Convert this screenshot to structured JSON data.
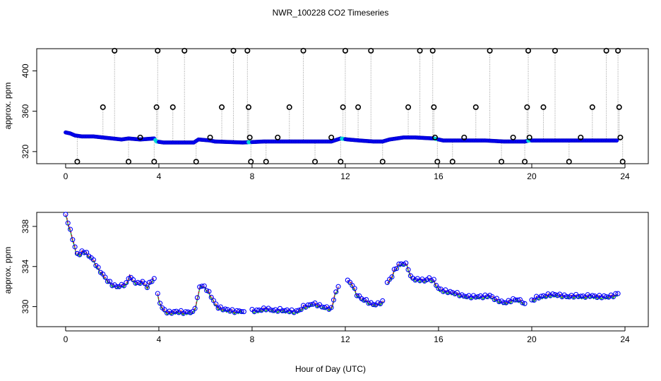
{
  "title": "NWR_100228  CO2 Timeseries",
  "xlabel": "Hour of Day (UTC)",
  "colors": {
    "raw": "#000000",
    "mean": "#0000ff",
    "flag": "#00d8d8",
    "median": "#ff0000",
    "smooth": "#00b000",
    "connector": "#9a9a9a"
  },
  "chart_data": [
    {
      "type": "scatter",
      "panel": "top",
      "title": "NWR_100228  CO2 Timeseries",
      "xlabel": "",
      "ylabel": "approx. ppm",
      "xlim": [
        0,
        24
      ],
      "ylim": [
        308,
        422
      ],
      "xticks": [
        0,
        4,
        8,
        12,
        16,
        20,
        24
      ],
      "yticks": [
        320,
        360,
        400
      ],
      "baseline": [
        [
          0,
          339
        ],
        [
          0.2,
          338
        ],
        [
          0.4,
          336
        ],
        [
          0.7,
          335
        ],
        [
          1.2,
          335
        ],
        [
          1.6,
          334
        ],
        [
          2.0,
          333
        ],
        [
          2.4,
          332
        ],
        [
          2.7,
          333
        ],
        [
          3.2,
          332
        ],
        [
          3.8,
          333
        ],
        [
          3.9,
          330
        ],
        [
          4.2,
          329
        ],
        [
          5.5,
          329
        ],
        [
          5.7,
          332
        ],
        [
          6.2,
          331
        ],
        [
          6.4,
          330
        ],
        [
          7.6,
          329
        ],
        [
          8.5,
          330
        ],
        [
          9.6,
          330
        ],
        [
          10.6,
          330
        ],
        [
          11.4,
          330
        ],
        [
          11.8,
          333
        ],
        [
          12.1,
          332
        ],
        [
          12.6,
          331
        ],
        [
          13.2,
          330
        ],
        [
          13.6,
          330
        ],
        [
          13.9,
          332
        ],
        [
          14.5,
          334
        ],
        [
          15.0,
          334
        ],
        [
          15.8,
          333
        ],
        [
          16.2,
          331
        ],
        [
          17.0,
          331
        ],
        [
          18.0,
          331
        ],
        [
          18.8,
          330
        ],
        [
          19.7,
          330
        ],
        [
          19.9,
          331
        ],
        [
          20.5,
          331
        ],
        [
          22.0,
          331
        ],
        [
          23.7,
          331
        ]
      ],
      "outliers": [
        {
          "x": 0.5,
          "y": 310
        },
        {
          "x": 1.6,
          "y": 364
        },
        {
          "x": 2.1,
          "y": 420
        },
        {
          "x": 2.7,
          "y": 310
        },
        {
          "x": 3.2,
          "y": 334
        },
        {
          "x": 3.8,
          "y": 310
        },
        {
          "x": 3.9,
          "y": 364
        },
        {
          "x": 3.95,
          "y": 420
        },
        {
          "x": 4.6,
          "y": 364
        },
        {
          "x": 5.1,
          "y": 420
        },
        {
          "x": 5.6,
          "y": 310
        },
        {
          "x": 6.2,
          "y": 334
        },
        {
          "x": 6.7,
          "y": 364
        },
        {
          "x": 7.2,
          "y": 420
        },
        {
          "x": 7.8,
          "y": 420
        },
        {
          "x": 7.85,
          "y": 364
        },
        {
          "x": 7.9,
          "y": 334
        },
        {
          "x": 7.95,
          "y": 310
        },
        {
          "x": 8.6,
          "y": 310
        },
        {
          "x": 9.1,
          "y": 334
        },
        {
          "x": 9.6,
          "y": 364
        },
        {
          "x": 10.2,
          "y": 420
        },
        {
          "x": 10.7,
          "y": 310
        },
        {
          "x": 11.4,
          "y": 334
        },
        {
          "x": 11.8,
          "y": 310
        },
        {
          "x": 11.9,
          "y": 364
        },
        {
          "x": 12.0,
          "y": 420
        },
        {
          "x": 12.55,
          "y": 364
        },
        {
          "x": 13.1,
          "y": 420
        },
        {
          "x": 13.6,
          "y": 310
        },
        {
          "x": 14.7,
          "y": 364
        },
        {
          "x": 15.2,
          "y": 420
        },
        {
          "x": 15.75,
          "y": 420
        },
        {
          "x": 15.8,
          "y": 364
        },
        {
          "x": 15.85,
          "y": 334
        },
        {
          "x": 15.95,
          "y": 310
        },
        {
          "x": 16.6,
          "y": 310
        },
        {
          "x": 17.1,
          "y": 334
        },
        {
          "x": 17.6,
          "y": 364
        },
        {
          "x": 18.2,
          "y": 420
        },
        {
          "x": 18.7,
          "y": 310
        },
        {
          "x": 19.2,
          "y": 334
        },
        {
          "x": 19.7,
          "y": 310
        },
        {
          "x": 19.8,
          "y": 364
        },
        {
          "x": 19.85,
          "y": 420
        },
        {
          "x": 19.9,
          "y": 334
        },
        {
          "x": 20.5,
          "y": 364
        },
        {
          "x": 21.0,
          "y": 420
        },
        {
          "x": 21.6,
          "y": 310
        },
        {
          "x": 22.1,
          "y": 334
        },
        {
          "x": 22.6,
          "y": 364
        },
        {
          "x": 23.2,
          "y": 420
        },
        {
          "x": 23.7,
          "y": 420
        },
        {
          "x": 23.75,
          "y": 364
        },
        {
          "x": 23.8,
          "y": 334
        },
        {
          "x": 23.9,
          "y": 310
        }
      ]
    },
    {
      "type": "line",
      "panel": "bottom",
      "xlabel": "Hour of Day (UTC)",
      "ylabel": "approx. ppm",
      "xlim": [
        0,
        24
      ],
      "ylim": [
        328.0,
        339.4
      ],
      "xticks": [
        0,
        4,
        8,
        12,
        16,
        20,
        24
      ],
      "yticks": [
        330,
        334,
        338
      ],
      "series": [
        {
          "name": "co2",
          "points": [
            [
              0.0,
              339.2
            ],
            [
              0.15,
              338.0
            ],
            [
              0.3,
              336.8
            ],
            [
              0.45,
              335.4
            ],
            [
              0.6,
              335.2
            ],
            [
              0.75,
              335.6
            ],
            [
              0.9,
              335.3
            ],
            [
              1.05,
              335.0
            ],
            [
              1.2,
              334.6
            ],
            [
              1.4,
              333.8
            ],
            [
              1.6,
              333.2
            ],
            [
              1.8,
              332.6
            ],
            [
              2.0,
              332.2
            ],
            [
              2.2,
              332.0
            ],
            [
              2.4,
              332.1
            ],
            [
              2.6,
              332.3
            ],
            [
              2.75,
              333.1
            ],
            [
              2.9,
              332.6
            ],
            [
              3.1,
              332.3
            ],
            [
              3.3,
              332.5
            ],
            [
              3.5,
              332.0
            ],
            [
              3.7,
              332.6
            ],
            [
              3.8,
              332.8
            ],
            null,
            [
              3.95,
              331.2
            ],
            [
              4.1,
              330.0
            ],
            [
              4.3,
              329.5
            ],
            [
              4.5,
              329.4
            ],
            [
              4.7,
              329.5
            ],
            [
              4.9,
              329.5
            ],
            [
              5.1,
              329.4
            ],
            [
              5.3,
              329.5
            ],
            [
              5.45,
              329.4
            ],
            [
              5.6,
              330.2
            ],
            [
              5.75,
              332.0
            ],
            [
              5.9,
              332.1
            ],
            [
              6.1,
              331.6
            ],
            [
              6.3,
              330.8
            ],
            [
              6.5,
              330.0
            ],
            [
              6.7,
              329.8
            ],
            [
              6.9,
              329.7
            ],
            [
              7.1,
              329.6
            ],
            [
              7.3,
              329.5
            ],
            [
              7.5,
              329.6
            ],
            [
              7.65,
              329.5
            ],
            null,
            [
              8.0,
              329.6
            ],
            [
              8.2,
              329.6
            ],
            [
              8.4,
              329.7
            ],
            [
              8.6,
              329.8
            ],
            [
              8.8,
              329.7
            ],
            [
              9.0,
              329.6
            ],
            [
              9.2,
              329.7
            ],
            [
              9.4,
              329.6
            ],
            [
              9.6,
              329.6
            ],
            [
              9.8,
              329.5
            ],
            [
              10.0,
              329.6
            ],
            [
              10.2,
              330.0
            ],
            [
              10.4,
              330.1
            ],
            [
              10.6,
              330.3
            ],
            [
              10.8,
              330.2
            ],
            [
              11.0,
              330.0
            ],
            [
              11.2,
              329.9
            ],
            [
              11.4,
              329.8
            ],
            [
              11.55,
              331.2
            ],
            [
              11.7,
              332.0
            ],
            null,
            [
              12.1,
              332.6
            ],
            [
              12.3,
              332.2
            ],
            [
              12.5,
              331.2
            ],
            [
              12.7,
              330.8
            ],
            [
              12.9,
              330.6
            ],
            [
              13.1,
              330.3
            ],
            [
              13.3,
              330.2
            ],
            [
              13.5,
              330.4
            ],
            [
              13.65,
              330.5
            ],
            null,
            [
              13.8,
              332.4
            ],
            [
              13.95,
              332.8
            ],
            [
              14.1,
              333.6
            ],
            [
              14.3,
              334.2
            ],
            [
              14.5,
              334.3
            ],
            [
              14.65,
              334.2
            ],
            [
              14.8,
              333.0
            ],
            [
              15.0,
              332.7
            ],
            [
              15.2,
              332.7
            ],
            [
              15.4,
              332.6
            ],
            [
              15.6,
              332.8
            ],
            [
              15.8,
              332.6
            ],
            [
              16.0,
              331.8
            ],
            [
              16.2,
              331.6
            ],
            [
              16.4,
              331.5
            ],
            [
              16.6,
              331.4
            ],
            [
              16.8,
              331.3
            ],
            [
              17.0,
              331.1
            ],
            [
              17.3,
              331.0
            ],
            [
              17.6,
              331.0
            ],
            [
              17.9,
              331.0
            ],
            [
              18.2,
              331.1
            ],
            [
              18.4,
              330.8
            ],
            [
              18.6,
              330.6
            ],
            [
              18.8,
              330.4
            ],
            [
              19.0,
              330.5
            ],
            [
              19.2,
              330.7
            ],
            [
              19.4,
              330.7
            ],
            [
              19.6,
              330.5
            ],
            [
              19.7,
              330.3
            ],
            null,
            [
              20.0,
              330.6
            ],
            [
              20.2,
              330.9
            ],
            [
              20.4,
              331.0
            ],
            [
              20.6,
              331.1
            ],
            [
              20.8,
              331.2
            ],
            [
              21.0,
              331.2
            ],
            [
              21.3,
              331.1
            ],
            [
              21.6,
              331.0
            ],
            [
              21.9,
              331.1
            ],
            [
              22.2,
              331.0
            ],
            [
              22.5,
              331.1
            ],
            [
              22.8,
              331.0
            ],
            [
              23.1,
              331.0
            ],
            [
              23.3,
              331.0
            ],
            [
              23.5,
              331.1
            ],
            [
              23.7,
              331.3
            ]
          ]
        }
      ]
    }
  ]
}
